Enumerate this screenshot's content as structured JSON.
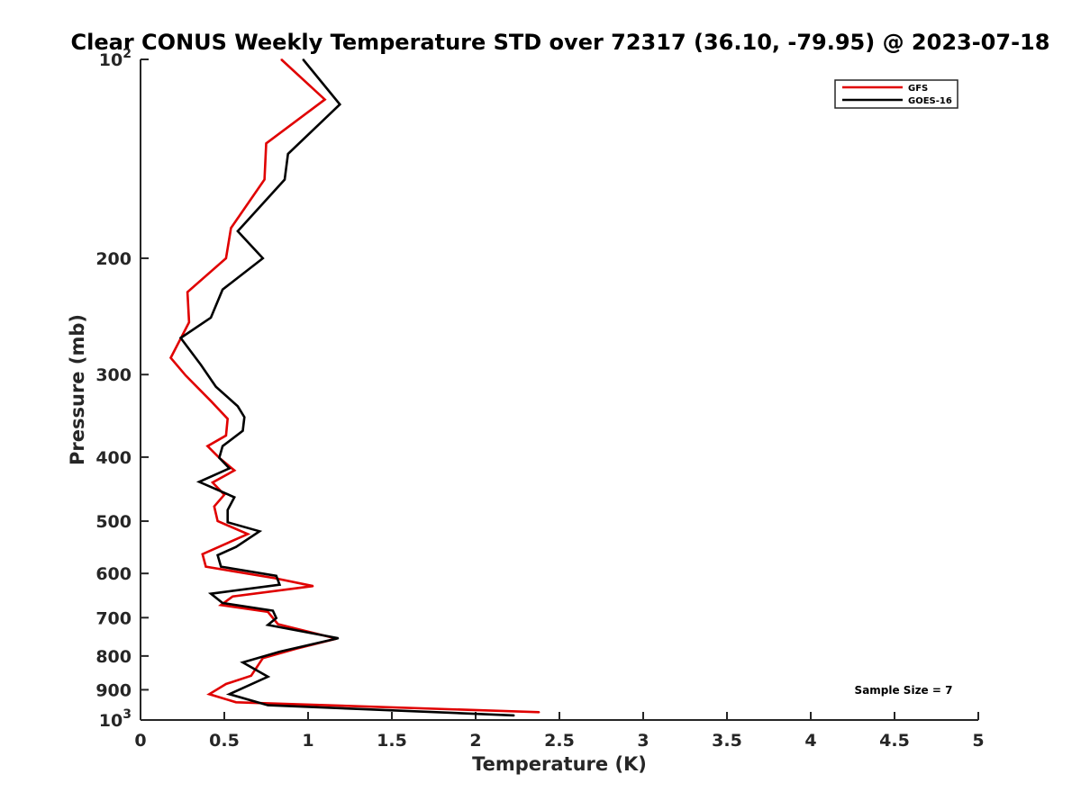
{
  "chart_data": {
    "type": "line",
    "title": "Clear CONUS Weekly Temperature STD over 72317 (36.10, -79.95) @ 2023-07-18",
    "xlabel": "Temperature (K)",
    "ylabel": "Pressure (mb)",
    "xlim": [
      0,
      5
    ],
    "ylim": [
      100,
      1000
    ],
    "y_scale": "log",
    "y_reversed": true,
    "x_ticks": [
      "0",
      "0.5",
      "1",
      "1.5",
      "2",
      "2.5",
      "3",
      "3.5",
      "4",
      "4.5",
      "5"
    ],
    "x_tick_values": [
      0,
      0.5,
      1,
      1.5,
      2,
      2.5,
      3,
      3.5,
      4,
      4.5,
      5
    ],
    "y_ticks": [
      {
        "value": 100,
        "base": "10",
        "exp": "2"
      },
      {
        "value": 200,
        "label": "200"
      },
      {
        "value": 300,
        "label": "300"
      },
      {
        "value": 400,
        "label": "400"
      },
      {
        "value": 500,
        "label": "500"
      },
      {
        "value": 600,
        "label": "600"
      },
      {
        "value": 700,
        "label": "700"
      },
      {
        "value": 800,
        "label": "800"
      },
      {
        "value": 900,
        "label": "900"
      },
      {
        "value": 1000,
        "base": "10",
        "exp": "3"
      }
    ],
    "grid": false,
    "legend_position": "top-right",
    "annotation": "Sample Size = 7",
    "series": [
      {
        "name": "GFS",
        "color": "#e00000",
        "points": [
          [
            0.84,
            100
          ],
          [
            1.1,
            115
          ],
          [
            0.75,
            134
          ],
          [
            0.74,
            152
          ],
          [
            0.54,
            180
          ],
          [
            0.51,
            200
          ],
          [
            0.28,
            225
          ],
          [
            0.29,
            250
          ],
          [
            0.18,
            283
          ],
          [
            0.27,
            301
          ],
          [
            0.42,
            329
          ],
          [
            0.52,
            350
          ],
          [
            0.51,
            371
          ],
          [
            0.4,
            385
          ],
          [
            0.47,
            401
          ],
          [
            0.56,
            419
          ],
          [
            0.43,
            437
          ],
          [
            0.5,
            456
          ],
          [
            0.44,
            475
          ],
          [
            0.46,
            500
          ],
          [
            0.64,
            523
          ],
          [
            0.37,
            561
          ],
          [
            0.39,
            586
          ],
          [
            0.8,
            610
          ],
          [
            1.03,
            627
          ],
          [
            0.55,
            650
          ],
          [
            0.48,
            670
          ],
          [
            0.76,
            686
          ],
          [
            0.82,
            716
          ],
          [
            1.17,
            753
          ],
          [
            0.93,
            780
          ],
          [
            0.73,
            806
          ],
          [
            0.66,
            857
          ],
          [
            0.51,
            882
          ],
          [
            0.41,
            914
          ],
          [
            0.57,
            940
          ],
          [
            2.38,
            973
          ]
        ]
      },
      {
        "name": "GOES-16",
        "color": "#000000",
        "points": [
          [
            0.97,
            100
          ],
          [
            1.19,
            117
          ],
          [
            0.88,
            139
          ],
          [
            0.86,
            152
          ],
          [
            0.58,
            182
          ],
          [
            0.73,
            200
          ],
          [
            0.49,
            223
          ],
          [
            0.42,
            246
          ],
          [
            0.24,
            264
          ],
          [
            0.36,
            290
          ],
          [
            0.45,
            313
          ],
          [
            0.58,
            335
          ],
          [
            0.62,
            348
          ],
          [
            0.61,
            365
          ],
          [
            0.49,
            385
          ],
          [
            0.47,
            401
          ],
          [
            0.53,
            416
          ],
          [
            0.35,
            436
          ],
          [
            0.56,
            460
          ],
          [
            0.52,
            481
          ],
          [
            0.52,
            502
          ],
          [
            0.71,
            518
          ],
          [
            0.57,
            547
          ],
          [
            0.46,
            563
          ],
          [
            0.48,
            586
          ],
          [
            0.81,
            605
          ],
          [
            0.83,
            624
          ],
          [
            0.42,
            644
          ],
          [
            0.49,
            665
          ],
          [
            0.79,
            683
          ],
          [
            0.81,
            701
          ],
          [
            0.76,
            718
          ],
          [
            1.18,
            752
          ],
          [
            0.83,
            788
          ],
          [
            0.61,
            818
          ],
          [
            0.76,
            860
          ],
          [
            0.53,
            914
          ],
          [
            0.76,
            950
          ],
          [
            2.23,
            984
          ]
        ]
      }
    ]
  }
}
